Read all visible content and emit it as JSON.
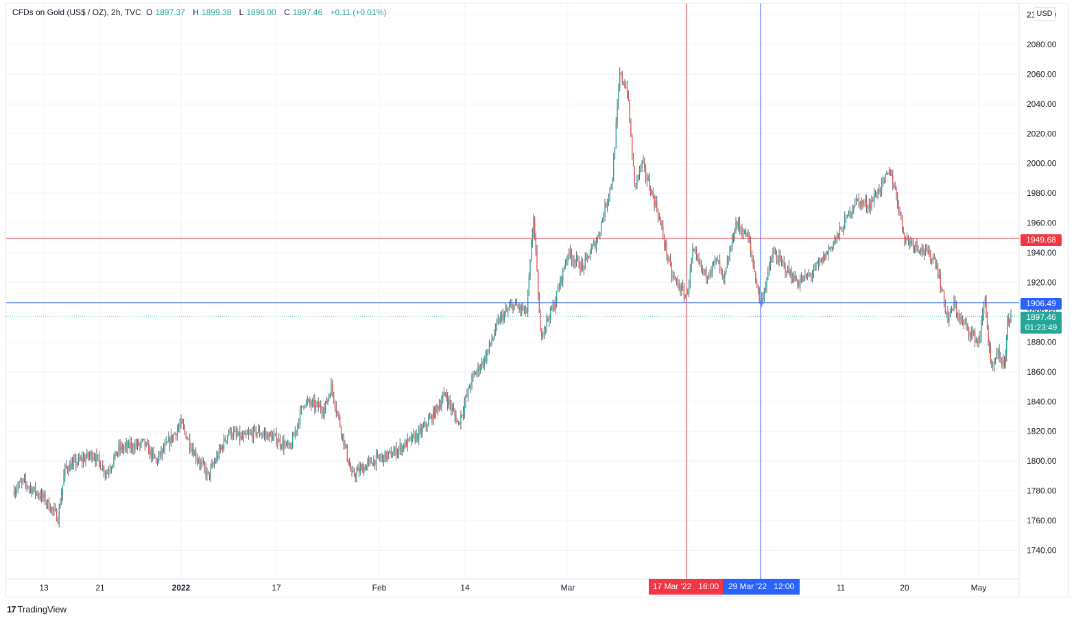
{
  "legend": {
    "title": "CFDs on Gold (US$ / OZ), 2h, TVC",
    "open_label": "O",
    "open": "1897.37",
    "high_label": "H",
    "high": "1899.38",
    "low_label": "L",
    "low": "1896.00",
    "close_label": "C",
    "close": "1897.46",
    "change": "+0.11 (+0.01%)"
  },
  "currency": "USD",
  "branding": {
    "logo": "17",
    "name": "TradingView"
  },
  "markers": {
    "red_price": "1949.68",
    "blue_price": "1906.49",
    "last_price": "1897.46",
    "countdown": "01:23:49",
    "red_time_date": "17 Mar '22",
    "red_time_hour": "16:00",
    "blue_time_date": "29 Mar '22",
    "blue_time_hour": "12:00"
  },
  "colors": {
    "up": "#26a69a",
    "down": "#ef5350",
    "wick": "#5d606b",
    "red_line": "#f23645",
    "blue_line": "#2962ff",
    "grid": "#f0f3fa"
  },
  "chart_data": {
    "type": "candlestick",
    "title": "CFDs on Gold (US$ / OZ), 2h, TVC",
    "x_tick_labels": [
      "13",
      "21",
      "2022",
      "17",
      "Feb",
      "14",
      "Mar",
      "11",
      "20",
      "May"
    ],
    "y_tick_labels": [
      "1740.00",
      "1760.00",
      "1780.00",
      "1800.00",
      "1820.00",
      "1840.00",
      "1860.00",
      "1880.00",
      "1900.00",
      "1920.00",
      "1940.00",
      "1960.00",
      "1980.00",
      "2000.00",
      "2020.00",
      "2040.00",
      "2060.00",
      "2080.00",
      "2100.00"
    ],
    "ylim": [
      1720,
      2110
    ],
    "grid": true,
    "horizontal_lines": [
      {
        "price": 1949.68,
        "color": "red"
      },
      {
        "price": 1906.49,
        "color": "blue"
      }
    ],
    "vertical_lines": [
      {
        "time": "17 Mar '22 16:00",
        "color": "red"
      },
      {
        "time": "29 Mar '22 12:00",
        "color": "blue"
      }
    ],
    "close_path": [
      {
        "date": "2021-12-07",
        "price": 1780
      },
      {
        "date": "2021-12-09",
        "price": 1786
      },
      {
        "date": "2021-12-13",
        "price": 1775
      },
      {
        "date": "2021-12-15",
        "price": 1762
      },
      {
        "date": "2021-12-16",
        "price": 1795
      },
      {
        "date": "2021-12-20",
        "price": 1805
      },
      {
        "date": "2021-12-22",
        "price": 1792
      },
      {
        "date": "2021-12-24",
        "price": 1808
      },
      {
        "date": "2021-12-28",
        "price": 1812
      },
      {
        "date": "2021-12-30",
        "price": 1800
      },
      {
        "date": "2022-01-03",
        "price": 1825
      },
      {
        "date": "2022-01-05",
        "price": 1805
      },
      {
        "date": "2022-01-07",
        "price": 1790
      },
      {
        "date": "2022-01-10",
        "price": 1820
      },
      {
        "date": "2022-01-12",
        "price": 1815
      },
      {
        "date": "2022-01-14",
        "price": 1820
      },
      {
        "date": "2022-01-17",
        "price": 1815
      },
      {
        "date": "2022-01-19",
        "price": 1808
      },
      {
        "date": "2022-01-21",
        "price": 1840
      },
      {
        "date": "2022-01-24",
        "price": 1835
      },
      {
        "date": "2022-01-25",
        "price": 1850
      },
      {
        "date": "2022-01-27",
        "price": 1810
      },
      {
        "date": "2022-01-28",
        "price": 1790
      },
      {
        "date": "2022-01-31",
        "price": 1800
      },
      {
        "date": "2022-02-03",
        "price": 1805
      },
      {
        "date": "2022-02-07",
        "price": 1818
      },
      {
        "date": "2022-02-09",
        "price": 1830
      },
      {
        "date": "2022-02-11",
        "price": 1845
      },
      {
        "date": "2022-02-13",
        "price": 1825
      },
      {
        "date": "2022-02-15",
        "price": 1855
      },
      {
        "date": "2022-02-17",
        "price": 1870
      },
      {
        "date": "2022-02-19",
        "price": 1895
      },
      {
        "date": "2022-02-21",
        "price": 1905
      },
      {
        "date": "2022-02-23",
        "price": 1900
      },
      {
        "date": "2022-02-24",
        "price": 1965
      },
      {
        "date": "2022-02-25",
        "price": 1885
      },
      {
        "date": "2022-02-27",
        "price": 1905
      },
      {
        "date": "2022-03-01",
        "price": 1940
      },
      {
        "date": "2022-03-03",
        "price": 1930
      },
      {
        "date": "2022-03-05",
        "price": 1950
      },
      {
        "date": "2022-03-07",
        "price": 1990
      },
      {
        "date": "2022-03-08",
        "price": 2060
      },
      {
        "date": "2022-03-09",
        "price": 2050
      },
      {
        "date": "2022-03-10",
        "price": 1985
      },
      {
        "date": "2022-03-11",
        "price": 2000
      },
      {
        "date": "2022-03-13",
        "price": 1970
      },
      {
        "date": "2022-03-15",
        "price": 1925
      },
      {
        "date": "2022-03-17",
        "price": 1910
      },
      {
        "date": "2022-03-18",
        "price": 1940
      },
      {
        "date": "2022-03-20",
        "price": 1925
      },
      {
        "date": "2022-03-22",
        "price": 1935
      },
      {
        "date": "2022-03-23",
        "price": 1920
      },
      {
        "date": "2022-03-25",
        "price": 1960
      },
      {
        "date": "2022-03-27",
        "price": 1950
      },
      {
        "date": "2022-03-29",
        "price": 1905
      },
      {
        "date": "2022-03-31",
        "price": 1940
      },
      {
        "date": "2022-04-02",
        "price": 1930
      },
      {
        "date": "2022-04-04",
        "price": 1920
      },
      {
        "date": "2022-04-06",
        "price": 1925
      },
      {
        "date": "2022-04-08",
        "price": 1935
      },
      {
        "date": "2022-04-11",
        "price": 1955
      },
      {
        "date": "2022-04-13",
        "price": 1975
      },
      {
        "date": "2022-04-15",
        "price": 1972
      },
      {
        "date": "2022-04-18",
        "price": 1995
      },
      {
        "date": "2022-04-19",
        "price": 1975
      },
      {
        "date": "2022-04-20",
        "price": 1950
      },
      {
        "date": "2022-04-22",
        "price": 1945
      },
      {
        "date": "2022-04-25",
        "price": 1935
      },
      {
        "date": "2022-04-27",
        "price": 1895
      },
      {
        "date": "2022-04-28",
        "price": 1905
      },
      {
        "date": "2022-04-29",
        "price": 1895
      },
      {
        "date": "2022-05-02",
        "price": 1880
      },
      {
        "date": "2022-05-04",
        "price": 1910
      },
      {
        "date": "2022-05-05",
        "price": 1880
      },
      {
        "date": "2022-05-06",
        "price": 1860
      },
      {
        "date": "2022-05-08",
        "price": 1872
      },
      {
        "date": "2022-05-10",
        "price": 1863
      },
      {
        "date": "2022-05-11",
        "price": 1895
      },
      {
        "date": "2022-05-12",
        "price": 1897.46
      }
    ]
  }
}
